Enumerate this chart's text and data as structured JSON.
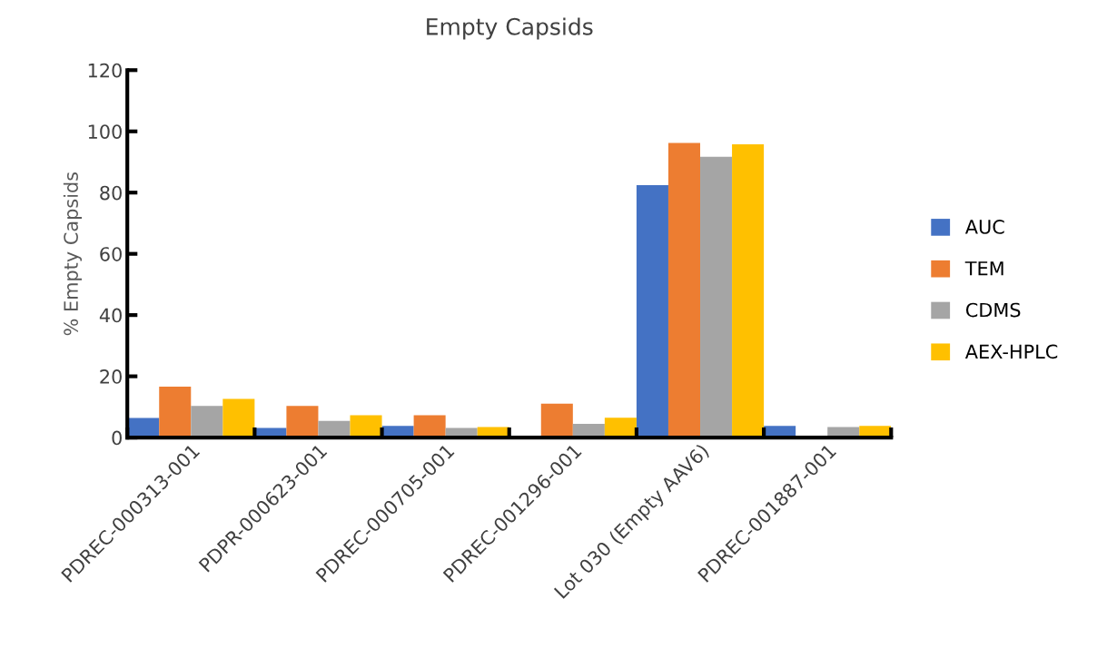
{
  "chart_data": {
    "type": "bar",
    "title": "Empty Capsids",
    "ylabel": "% Empty Capsids",
    "categories": [
      "PDREC-000313-001",
      "PDPR-000623-001",
      "PDREC-000705-001",
      "PDREC-001296-001",
      "Lot 030 (Empty AAV6)",
      "PDREC-001887-001"
    ],
    "series": [
      {
        "name": "AUC",
        "color": "#4472c4",
        "values": [
          6.4,
          3.1,
          3.8,
          null,
          82.4,
          3.8
        ]
      },
      {
        "name": "TEM",
        "color": "#ed7d31",
        "values": [
          16.6,
          10.3,
          7.3,
          11.1,
          96.2,
          null
        ]
      },
      {
        "name": "CDMS",
        "color": "#a5a5a5",
        "values": [
          10.3,
          5.4,
          3.1,
          4.5,
          91.7,
          3.4
        ]
      },
      {
        "name": "AEX-HPLC",
        "color": "#ffc000",
        "values": [
          12.6,
          7.3,
          3.4,
          6.5,
          95.8,
          3.8
        ]
      }
    ],
    "ylim": [
      0,
      120
    ],
    "yticks": [
      0,
      20,
      40,
      60,
      80,
      100,
      120
    ],
    "grid": false,
    "legend": "right"
  }
}
